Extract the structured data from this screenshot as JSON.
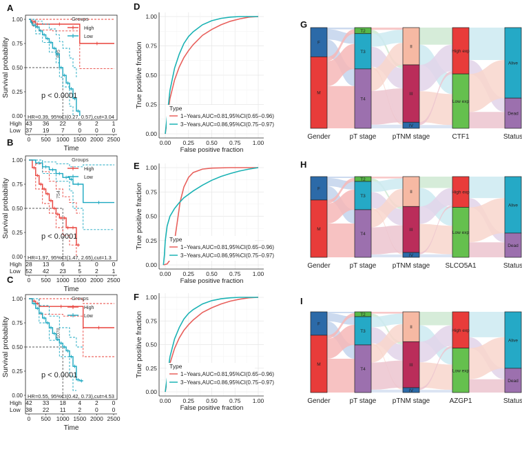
{
  "colors": {
    "high": "#e8403a",
    "low": "#1aa7c0",
    "roc1": "#e8605c",
    "roc3": "#1ab2b4"
  },
  "chart_data": [
    {
      "type": "line",
      "kind": "km",
      "panel": "A",
      "xlabel": "Time",
      "ylabel": "Survival probability",
      "xlim": [
        0,
        2500
      ],
      "ylim": [
        0,
        1
      ],
      "xticks": [
        "0",
        "500",
        "1000",
        "1500",
        "2000",
        "2500"
      ],
      "yticks": [
        "0.00",
        "0.25",
        "0.50",
        "0.75",
        "1.00"
      ],
      "legend_title": "Groups",
      "legend": [
        "High",
        "Low"
      ],
      "pvalue": "p < 0.0001",
      "hr": "HR=0.39, 95%CI(0.27, 0.57),cut=3.04",
      "median_label": "895",
      "series": [
        {
          "name": "High",
          "x": [
            0,
            60,
            120,
            200,
            300,
            1500,
            2520
          ],
          "y": [
            1,
            0.975,
            0.975,
            0.95,
            0.95,
            0.75,
            0.75
          ],
          "upper_x": [
            0,
            120,
            300,
            1500,
            2520
          ],
          "upper_y": [
            1,
            1,
            1,
            1,
            1
          ],
          "lower_x": [
            0,
            120,
            300,
            700,
            1500,
            2520
          ],
          "lower_y": [
            1,
            0.93,
            0.89,
            0.88,
            0.49,
            0.49
          ]
        },
        {
          "name": "Low",
          "x": [
            0,
            50,
            100,
            200,
            300,
            400,
            500,
            600,
            700,
            800,
            900,
            1000,
            1100,
            1200,
            1300,
            1400,
            1500
          ],
          "y": [
            1,
            0.97,
            0.94,
            0.92,
            0.88,
            0.84,
            0.8,
            0.76,
            0.7,
            0.64,
            0.5,
            0.42,
            0.34,
            0.28,
            0.18,
            0.05,
            0
          ],
          "upper_x": [
            0,
            200,
            400,
            600,
            800,
            900,
            1000,
            1200,
            1300,
            1400
          ],
          "upper_y": [
            1,
            0.98,
            0.95,
            0.9,
            0.84,
            0.77,
            0.7,
            0.6,
            0.5,
            0.4
          ],
          "lower_x": [
            0,
            200,
            400,
            600,
            800,
            900,
            1000,
            1200,
            1300
          ],
          "lower_y": [
            1,
            0.85,
            0.76,
            0.66,
            0.55,
            0.4,
            0.3,
            0.1,
            0
          ]
        }
      ],
      "risk_table": {
        "rows": [
          {
            "label": "High",
            "values": [
              "43",
              "36",
              "22",
              "6",
              "2",
              "1"
            ]
          },
          {
            "label": "Low",
            "values": [
              "37",
              "19",
              "7",
              "0",
              "0",
              "0"
            ]
          }
        ]
      }
    },
    {
      "type": "line",
      "kind": "km",
      "panel": "B",
      "xlabel": "Time",
      "ylabel": "Survival probability",
      "xlim": [
        0,
        2500
      ],
      "ylim": [
        0,
        1
      ],
      "xticks": [
        "0",
        "500",
        "1000",
        "1500",
        "2000",
        "2500"
      ],
      "yticks": [
        "0.00",
        "0.25",
        "0.50",
        "0.75",
        "1.00"
      ],
      "legend_title": "Groups",
      "legend": [
        "High",
        "Low"
      ],
      "pvalue": "p < 0.0001",
      "hr": "HR=1.97, 95%CI(1.47, 2.65),cut=1.3",
      "median_label": "754",
      "series": [
        {
          "name": "High",
          "x": [
            0,
            100,
            200,
            300,
            400,
            500,
            600,
            700,
            800,
            900,
            1000,
            1100,
            1200,
            1400,
            1500
          ],
          "y": [
            1,
            0.92,
            0.84,
            0.75,
            0.7,
            0.65,
            0.58,
            0.5,
            0.44,
            0.4,
            0.4,
            0.3,
            0.3,
            0.12,
            0.12
          ],
          "upper_x": [
            0,
            200,
            400,
            600,
            800,
            1000,
            1200,
            1400,
            1500
          ],
          "upper_y": [
            1,
            0.96,
            0.88,
            0.78,
            0.7,
            0.62,
            0.56,
            0.45,
            0.45
          ],
          "lower_x": [
            0,
            200,
            400,
            600,
            800,
            1000,
            1200,
            1400
          ],
          "lower_y": [
            1,
            0.7,
            0.55,
            0.45,
            0.3,
            0.22,
            0.12,
            0
          ]
        },
        {
          "name": "Low",
          "x": [
            0,
            200,
            400,
            600,
            800,
            1000,
            1200,
            1300,
            1600,
            2520
          ],
          "y": [
            1,
            0.97,
            0.93,
            0.9,
            0.86,
            0.82,
            0.8,
            0.75,
            0.56,
            0.56
          ],
          "upper_x": [
            0,
            400,
            800,
            1200,
            1600,
            2520
          ],
          "upper_y": [
            1,
            0.98,
            0.96,
            0.93,
            0.95,
            0.95
          ],
          "lower_x": [
            0,
            400,
            800,
            1200,
            1300,
            1600,
            2520
          ],
          "lower_y": [
            1,
            0.86,
            0.78,
            0.68,
            0.5,
            0.28,
            0.28
          ]
        }
      ],
      "risk_table": {
        "rows": [
          {
            "label": "High",
            "values": [
              "28",
              "13",
              "6",
              "1",
              "0",
              "0"
            ]
          },
          {
            "label": "Low",
            "values": [
              "52",
              "42",
              "23",
              "5",
              "2",
              "1"
            ]
          }
        ]
      }
    },
    {
      "type": "line",
      "kind": "km",
      "panel": "C",
      "xlabel": "Time",
      "ylabel": "Survival probability",
      "xlim": [
        0,
        2500
      ],
      "ylim": [
        0,
        1
      ],
      "xticks": [
        "0",
        "500",
        "1000",
        "1500",
        "2000",
        "2500"
      ],
      "yticks": [
        "0.00",
        "0.25",
        "0.50",
        "0.75",
        "1.00"
      ],
      "legend_title": "Groups",
      "legend": [
        "High",
        "Low"
      ],
      "pvalue": "p < 0.0001",
      "hr": "HR=0.55, 95%CI(0.42, 0.73),cut=4.53",
      "median_label": "1078",
      "series": [
        {
          "name": "High",
          "x": [
            0,
            100,
            200,
            300,
            1600,
            2520
          ],
          "y": [
            1,
            0.975,
            0.95,
            0.92,
            0.7,
            0.7
          ],
          "upper_x": [
            0,
            300,
            1600,
            2520
          ],
          "upper_y": [
            1,
            1,
            0.95,
            0.95
          ],
          "lower_x": [
            0,
            300,
            1000,
            1600,
            2520
          ],
          "lower_y": [
            1,
            0.84,
            0.82,
            0.4,
            0.4
          ]
        },
        {
          "name": "Low",
          "x": [
            0,
            100,
            200,
            300,
            400,
            500,
            600,
            700,
            800,
            900,
            1000,
            1100,
            1200,
            1300,
            1400,
            1500,
            1600
          ],
          "y": [
            1,
            0.95,
            0.9,
            0.85,
            0.8,
            0.75,
            0.7,
            0.64,
            0.58,
            0.54,
            0.5,
            0.46,
            0.4,
            0.3,
            0.16,
            0.15,
            0.15
          ],
          "upper_x": [
            0,
            300,
            600,
            900,
            1200,
            1400,
            1600
          ],
          "upper_y": [
            1,
            0.93,
            0.82,
            0.7,
            0.6,
            0.5,
            0.5
          ],
          "lower_x": [
            0,
            300,
            600,
            900,
            1200,
            1300,
            1400
          ],
          "lower_y": [
            1,
            0.75,
            0.57,
            0.4,
            0.2,
            0.05,
            0.05
          ]
        }
      ],
      "risk_table": {
        "rows": [
          {
            "label": "High",
            "values": [
              "42",
              "33",
              "18",
              "4",
              "2",
              "0"
            ]
          },
          {
            "label": "Low",
            "values": [
              "38",
              "22",
              "11",
              "2",
              "0",
              "0"
            ]
          }
        ]
      }
    },
    {
      "type": "line",
      "kind": "roc",
      "panel": "D",
      "xlabel": "False positive fraction",
      "ylabel": "True positive fraction",
      "xlim": [
        0,
        1
      ],
      "ylim": [
        0,
        1
      ],
      "xticks": [
        "0.00",
        "0.25",
        "0.50",
        "0.75",
        "1.00"
      ],
      "yticks": [
        "0.00",
        "0.25",
        "0.50",
        "0.75",
        "1.00"
      ],
      "legend_title": "Type",
      "series": [
        {
          "name": "1−Years,AUC=0.81,95%CI(0.65−0.96)",
          "x": [
            0,
            0.05,
            0.1,
            0.15,
            0.2,
            0.25,
            0.3,
            0.4,
            0.5,
            0.6,
            0.7,
            0.8,
            0.9,
            1
          ],
          "y": [
            0,
            0.3,
            0.46,
            0.57,
            0.65,
            0.71,
            0.76,
            0.84,
            0.89,
            0.93,
            0.96,
            0.98,
            0.995,
            1
          ]
        },
        {
          "name": "3−Years,AUC=0.86,95%CI(0.75−0.97)",
          "x": [
            0,
            0.05,
            0.1,
            0.15,
            0.2,
            0.25,
            0.3,
            0.4,
            0.5,
            0.6,
            0.7,
            0.8,
            0.9,
            1
          ],
          "y": [
            0,
            0.37,
            0.56,
            0.68,
            0.77,
            0.83,
            0.87,
            0.93,
            0.965,
            0.985,
            0.995,
            1,
            1,
            1
          ]
        }
      ]
    },
    {
      "type": "line",
      "kind": "roc",
      "panel": "E",
      "xlabel": "False positive fraction",
      "ylabel": "True positive fraction",
      "xlim": [
        0,
        1
      ],
      "ylim": [
        0,
        1
      ],
      "xticks": [
        "0.00",
        "0.25",
        "0.50",
        "0.75",
        "1.00"
      ],
      "yticks": [
        "0.00",
        "0.25",
        "0.50",
        "0.75",
        "1.00"
      ],
      "legend_title": "Type",
      "series": [
        {
          "name": "1−Years,AUC=0.81,95%CI(0.65−0.96)",
          "x": [
            -0.02,
            0.02,
            0.05,
            0.08,
            0.1,
            0.13,
            0.16,
            0.2,
            0.25,
            0.3,
            0.4,
            0.5,
            0.7,
            1
          ],
          "y": [
            0,
            0.01,
            0.05,
            0.14,
            0.25,
            0.45,
            0.65,
            0.8,
            0.9,
            0.95,
            0.985,
            0.995,
            1,
            1
          ]
        },
        {
          "name": "3−Years,AUC=0.86,95%CI(0.75−0.97)",
          "x": [
            -0.02,
            -0.01,
            0,
            0.02,
            0.05,
            0.1,
            0.15,
            0.2,
            0.3,
            0.4,
            0.5,
            0.6,
            0.7,
            0.8,
            0.9,
            1
          ],
          "y": [
            0,
            0.1,
            0.25,
            0.4,
            0.5,
            0.58,
            0.64,
            0.69,
            0.76,
            0.82,
            0.87,
            0.91,
            0.94,
            0.965,
            0.985,
            1
          ]
        }
      ]
    },
    {
      "type": "line",
      "kind": "roc",
      "panel": "F",
      "xlabel": "False positive fraction",
      "ylabel": "True positive fraction",
      "xlim": [
        0,
        1
      ],
      "ylim": [
        0,
        1
      ],
      "xticks": [
        "0.00",
        "0.25",
        "0.50",
        "0.75",
        "1.00"
      ],
      "yticks": [
        "0.00",
        "0.25",
        "0.50",
        "0.75",
        "1.00"
      ],
      "legend_title": "Type",
      "series": [
        {
          "name": "1−Years,AUC=0.81,95%CI(0.65−0.96)",
          "x": [
            0,
            0.05,
            0.1,
            0.15,
            0.2,
            0.25,
            0.3,
            0.4,
            0.5,
            0.6,
            0.7,
            0.8,
            0.9,
            1
          ],
          "y": [
            0,
            0.3,
            0.46,
            0.57,
            0.65,
            0.71,
            0.76,
            0.84,
            0.89,
            0.93,
            0.96,
            0.98,
            0.995,
            1
          ]
        },
        {
          "name": "3−Years,AUC=0.86,95%CI(0.75−0.97)",
          "x": [
            0,
            0.05,
            0.1,
            0.15,
            0.2,
            0.25,
            0.3,
            0.4,
            0.5,
            0.6,
            0.7,
            0.8,
            0.9,
            1
          ],
          "y": [
            0,
            0.37,
            0.56,
            0.68,
            0.77,
            0.83,
            0.87,
            0.93,
            0.965,
            0.985,
            0.995,
            1,
            1,
            1
          ]
        }
      ]
    },
    {
      "type": "sankey",
      "panel": "G",
      "axes": [
        "Gender",
        "pT stage",
        "pTNM stage",
        "CTF1",
        "Status"
      ],
      "stratum_labels": [
        [
          {
            "label": "F",
            "value": 0.29
          },
          {
            "label": "M",
            "value": 0.71
          }
        ],
        [
          {
            "label": "T2",
            "value": 0.06
          },
          {
            "label": "T3",
            "value": 0.35
          },
          {
            "label": "T4",
            "value": 0.59
          }
        ],
        [
          {
            "label": "II",
            "value": 0.37
          },
          {
            "label": "III",
            "value": 0.57
          },
          {
            "label": "IV",
            "value": 0.06
          }
        ],
        [
          {
            "label": "High exp",
            "value": 0.46
          },
          {
            "label": "Low exp",
            "value": 0.54
          }
        ],
        [
          {
            "label": "Alive",
            "value": 0.7
          },
          {
            "label": "Dead",
            "value": 0.3
          }
        ]
      ]
    },
    {
      "type": "sankey",
      "panel": "H",
      "axes": [
        "Gender",
        "pT stage",
        "pTNM stage",
        "SLCO5A1",
        "Status"
      ],
      "stratum_labels": [
        [
          {
            "label": "F",
            "value": 0.29
          },
          {
            "label": "M",
            "value": 0.71
          }
        ],
        [
          {
            "label": "T2",
            "value": 0.06
          },
          {
            "label": "T3",
            "value": 0.35
          },
          {
            "label": "T4",
            "value": 0.59
          }
        ],
        [
          {
            "label": "II",
            "value": 0.37
          },
          {
            "label": "III",
            "value": 0.57
          },
          {
            "label": "IV",
            "value": 0.06
          }
        ],
        [
          {
            "label": "High exp",
            "value": 0.38
          },
          {
            "label": "Low exp",
            "value": 0.62
          }
        ],
        [
          {
            "label": "Alive",
            "value": 0.7
          },
          {
            "label": "Dead",
            "value": 0.3
          }
        ]
      ]
    },
    {
      "type": "sankey",
      "panel": "I",
      "axes": [
        "Gender",
        "pT stage",
        "pTNM stage",
        "AZGP1",
        "Status"
      ],
      "stratum_labels": [
        [
          {
            "label": "F",
            "value": 0.29
          },
          {
            "label": "M",
            "value": 0.71
          }
        ],
        [
          {
            "label": "T2",
            "value": 0.06
          },
          {
            "label": "T3",
            "value": 0.35
          },
          {
            "label": "T4",
            "value": 0.59
          }
        ],
        [
          {
            "label": "II",
            "value": 0.37
          },
          {
            "label": "III",
            "value": 0.57
          },
          {
            "label": "IV",
            "value": 0.06
          }
        ],
        [
          {
            "label": "High exp",
            "value": 0.45
          },
          {
            "label": "Low exp",
            "value": 0.55
          }
        ],
        [
          {
            "label": "Alive",
            "value": 0.7
          },
          {
            "label": "Dead",
            "value": 0.3
          }
        ]
      ]
    }
  ]
}
